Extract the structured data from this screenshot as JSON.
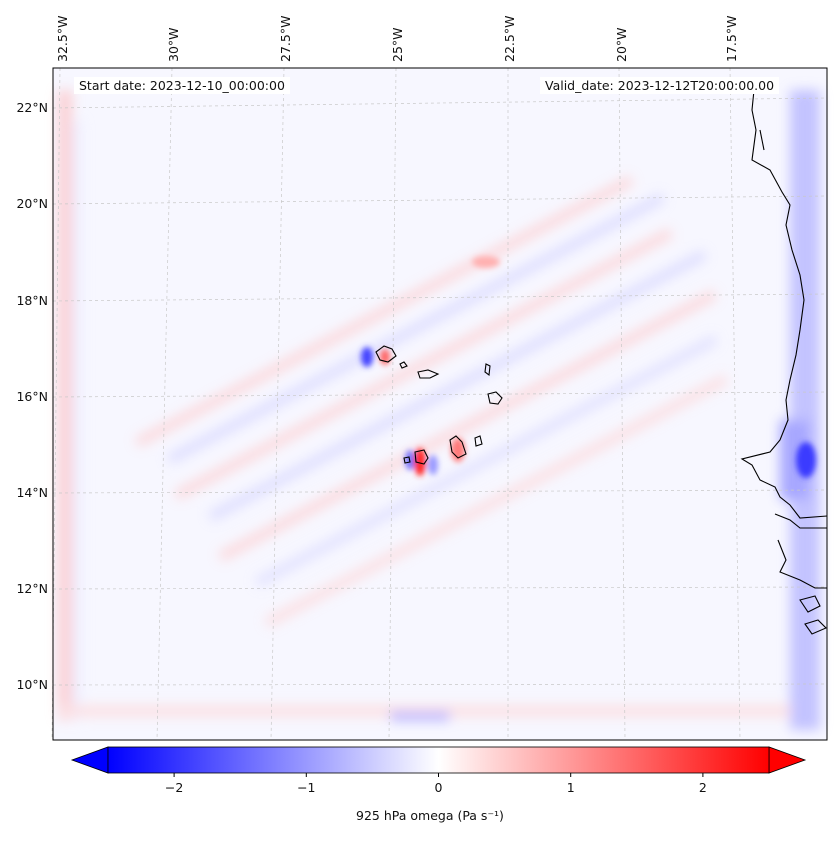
{
  "map": {
    "start_date": "Start date: 2023-12-10_00:00:00",
    "valid_date": "Valid_date: 2023-12-12T20:00:00.00",
    "lon_labels": [
      "32.5°W",
      "30°W",
      "27.5°W",
      "25°W",
      "22.5°W",
      "20°W",
      "17.5°W"
    ],
    "lat_labels": [
      "22°N",
      "20°N",
      "18°N",
      "16°N",
      "14°N",
      "12°N",
      "10°N"
    ],
    "colorbar": {
      "title": "925 hPa omega (Pa s⁻¹)",
      "ticks": [
        "−2",
        "−1",
        "0",
        "1",
        "2"
      ],
      "tick_values": [
        -2,
        -1,
        0,
        1,
        2
      ],
      "range": [
        -2.5,
        2.5
      ],
      "colormap": "bwr",
      "extend": "both"
    },
    "colors": {
      "negative": "#0000ff",
      "zero": "#ffffff",
      "positive": "#ff0000",
      "coast": "#000000",
      "grid": "#bbbbbb"
    }
  }
}
